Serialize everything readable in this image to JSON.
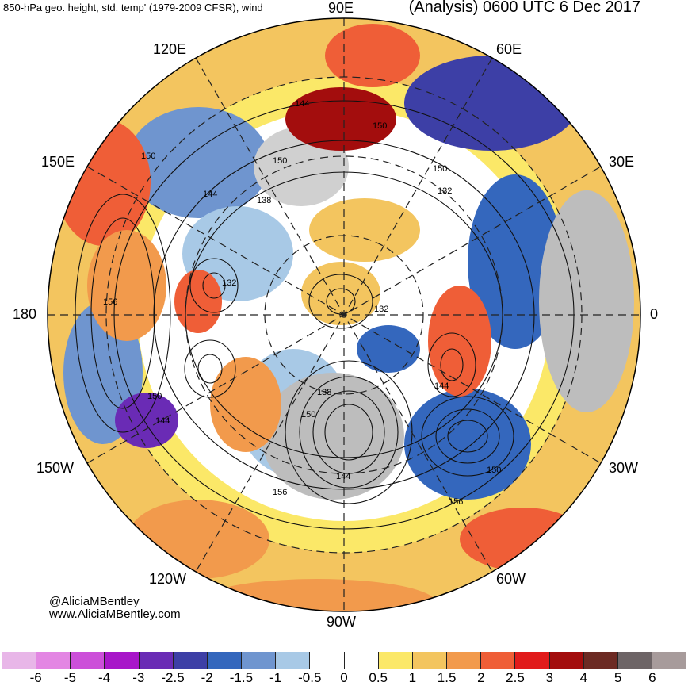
{
  "header": {
    "left": "850-hPa geo. height, std. temp' (1979-2009 CFSR), wind",
    "right": "(Analysis) 0600 UTC 6 Dec 2017"
  },
  "longitude_labels": {
    "e90": "90E",
    "e120": "120E",
    "e60": "60E",
    "e150": "150E",
    "e30": "30E",
    "d180": "180",
    "d0": "0",
    "w150": "150W",
    "w30": "30W",
    "w120": "120W",
    "w60": "60W",
    "w90": "90W"
  },
  "contour_labels": [
    "144",
    "150",
    "150",
    "150",
    "144",
    "138",
    "132",
    "156",
    "132",
    "138",
    "150",
    "144",
    "150",
    "156",
    "144",
    "150",
    "156",
    "150",
    "144",
    "132"
  ],
  "credit": {
    "handle": "@AliciaMBentley",
    "site": "www.AliciaMBentley.com"
  },
  "colorbar": {
    "colors": [
      "#e8b6e8",
      "#e386e3",
      "#cc4fd9",
      "#a816c9",
      "#6a2bb5",
      "#3d3fa6",
      "#3467bd",
      "#6f95cf",
      "#a8c9e6",
      "#ffffff",
      "#ffffff",
      "#fbe868",
      "#f3c55f",
      "#f29a4c",
      "#ef5e37",
      "#e11b1b",
      "#a30d0d",
      "#6c2a23",
      "#6d6466",
      "#a79b9b"
    ],
    "ticks": [
      "-6",
      "-5",
      "-4",
      "-3",
      "-2.5",
      "-2",
      "-1.5",
      "-1",
      "-0.5",
      "0",
      "0.5",
      "1",
      "1.5",
      "2",
      "2.5",
      "3",
      "4",
      "5",
      "6"
    ]
  }
}
